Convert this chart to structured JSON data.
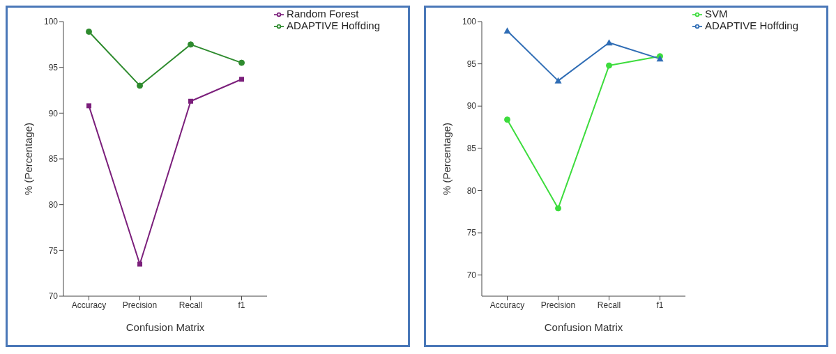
{
  "chart_data": [
    {
      "type": "line",
      "xlabel": "Confusion Matrix",
      "ylabel": "% (Percentage)",
      "categories": [
        "Accuracy",
        "Precision",
        "Recall",
        "f1"
      ],
      "ylim": [
        70,
        100
      ],
      "yticks": [
        70,
        75,
        80,
        85,
        90,
        95,
        100
      ],
      "grid": false,
      "legend": "top right",
      "series": [
        {
          "name": "Random Forest",
          "color": "#7b1f7b",
          "marker": "square",
          "values": [
            90.8,
            73.5,
            91.3,
            93.7
          ]
        },
        {
          "name": "ADAPTIVE Hoffding",
          "color": "#2e8b2e",
          "marker": "circle",
          "values": [
            98.9,
            93.0,
            97.5,
            95.5
          ]
        }
      ]
    },
    {
      "type": "line",
      "xlabel": "Confusion Matrix",
      "ylabel": "% (Percentage)",
      "categories": [
        "Accuracy",
        "Precision",
        "Recall",
        "f1"
      ],
      "ylim": [
        67.5,
        100
      ],
      "yticks": [
        70,
        75,
        80,
        85,
        90,
        95,
        100
      ],
      "grid": false,
      "legend": "top right",
      "series": [
        {
          "name": "SVM",
          "color": "#3ddc3d",
          "marker": "circle",
          "values": [
            88.4,
            77.9,
            94.8,
            95.9
          ]
        },
        {
          "name": "ADAPTIVE Hoffding",
          "color": "#2f6db5",
          "marker": "triangle",
          "values": [
            98.9,
            93.0,
            97.5,
            95.6
          ]
        }
      ]
    }
  ]
}
